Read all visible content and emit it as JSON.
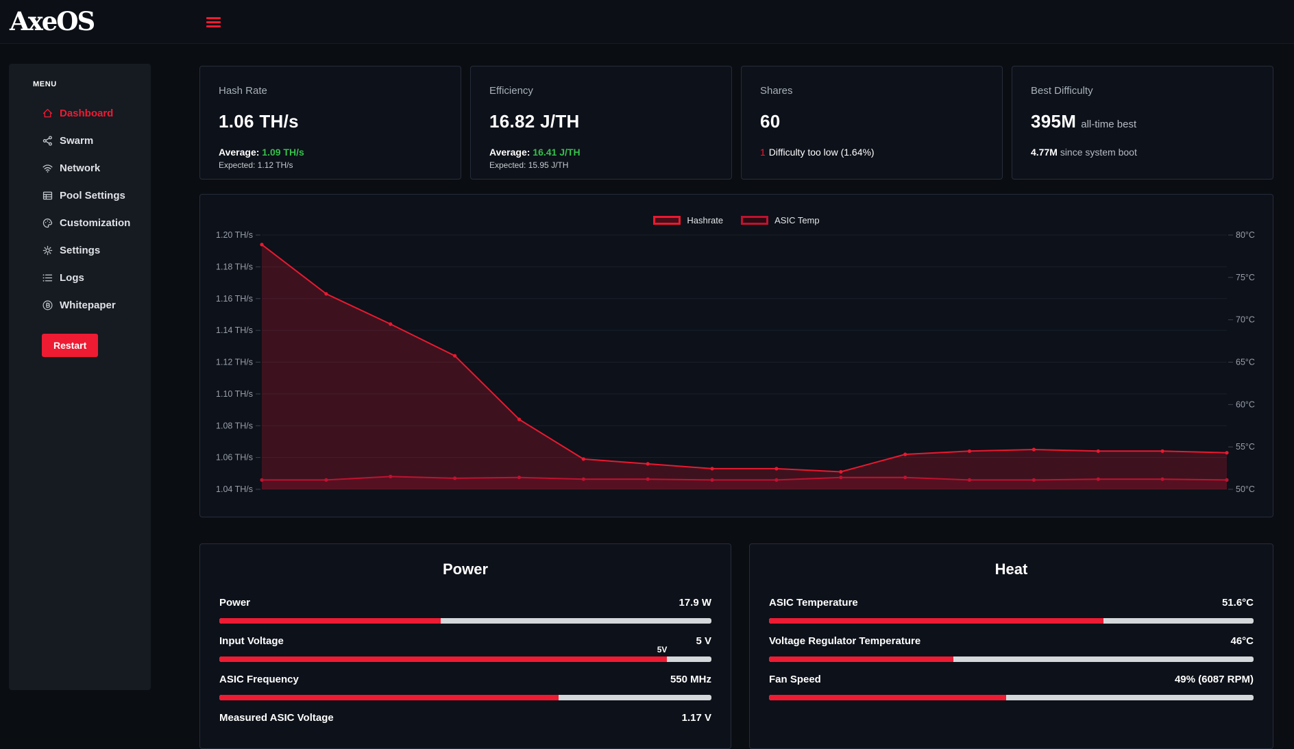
{
  "topbar": {
    "logo_text": "AxeOS"
  },
  "sidebar": {
    "menu_label": "MENU",
    "items": [
      {
        "label": "Dashboard",
        "icon": "home-icon",
        "active": true
      },
      {
        "label": "Swarm",
        "icon": "share-nodes-icon",
        "active": false
      },
      {
        "label": "Network",
        "icon": "wifi-icon",
        "active": false
      },
      {
        "label": "Pool Settings",
        "icon": "table-icon",
        "active": false
      },
      {
        "label": "Customization",
        "icon": "palette-icon",
        "active": false
      },
      {
        "label": "Settings",
        "icon": "gear-icon",
        "active": false
      },
      {
        "label": "Logs",
        "icon": "list-icon",
        "active": false
      },
      {
        "label": "Whitepaper",
        "icon": "bitcoin-icon",
        "active": false
      }
    ],
    "restart_label": "Restart"
  },
  "stats": [
    {
      "label": "Hash Rate",
      "value": "1.06 TH/s",
      "avg_label": "Average:",
      "avg_value": "1.09 TH/s",
      "expected": "Expected: 1.12 TH/s"
    },
    {
      "label": "Efficiency",
      "value": "16.82 J/TH",
      "avg_label": "Average:",
      "avg_value": "16.41 J/TH",
      "expected": "Expected: 15.95 J/TH"
    },
    {
      "label": "Shares",
      "value": "60",
      "rejected_count": "1",
      "rejected_text": "Difficulty too low (1.64%)"
    },
    {
      "label": "Best Difficulty",
      "value": "395M",
      "value_suffix": "all-time best",
      "sub_value": "4.77M",
      "sub_suffix": "since system boot"
    }
  ],
  "chart_data": {
    "type": "line",
    "legend_position": "top-center",
    "grid": true,
    "grid_color": "#1a202a",
    "axis_color": "#98a0aa",
    "tick_color": "#3c434e",
    "x_axis": {
      "labels_visible": false,
      "points": 16
    },
    "left_axis": {
      "min": 1.04,
      "max": 1.2,
      "ticks": [
        "1.20 TH/s",
        "1.18 TH/s",
        "1.16 TH/s",
        "1.14 TH/s",
        "1.12 TH/s",
        "1.10 TH/s",
        "1.08 TH/s",
        "1.06 TH/s",
        "1.04 TH/s"
      ]
    },
    "right_axis": {
      "min": 50,
      "max": 80,
      "ticks": [
        "80°C",
        "75°C",
        "70°C",
        "65°C",
        "60°C",
        "55°C",
        "50°C"
      ]
    },
    "series": [
      {
        "name": "Hashrate",
        "axis": "left",
        "color": "#ea1930",
        "fill": "rgba(234,25,48,0.22)",
        "swatch_fill": "#470d18",
        "values": [
          1.194,
          1.163,
          1.144,
          1.124,
          1.084,
          1.059,
          1.056,
          1.053,
          1.053,
          1.051,
          1.062,
          1.064,
          1.065,
          1.064,
          1.064,
          1.063
        ]
      },
      {
        "name": "ASIC Temp",
        "axis": "right",
        "color": "#c01230",
        "fill": "rgba(192,18,48,0.18)",
        "swatch_fill": "#2c0a12",
        "values": [
          51.1,
          51.1,
          51.5,
          51.3,
          51.4,
          51.2,
          51.2,
          51.1,
          51.1,
          51.4,
          51.4,
          51.1,
          51.1,
          51.2,
          51.2,
          51.1
        ]
      }
    ]
  },
  "power_card": {
    "title": "Power",
    "rows": [
      {
        "label": "Power",
        "value": "17.9 W",
        "percent": 45
      },
      {
        "label": "Input Voltage",
        "value": "5 V",
        "percent": 91,
        "marker": "5V"
      },
      {
        "label": "ASIC Frequency",
        "value": "550 MHz",
        "percent": 69
      },
      {
        "label": "Measured ASIC Voltage",
        "value": "1.17 V",
        "percent": null
      }
    ]
  },
  "heat_card": {
    "title": "Heat",
    "rows": [
      {
        "label": "ASIC Temperature",
        "value": "51.6°C",
        "percent": 69
      },
      {
        "label": "Voltage Regulator Temperature",
        "value": "46°C",
        "percent": 38
      },
      {
        "label": "Fan Speed",
        "value": "49% (6087 RPM)",
        "percent": 49
      }
    ]
  },
  "colors": {
    "accent_red": "#ee1b33",
    "green": "#35c04b",
    "page_bg": "#0a0d12",
    "card_bg": "#0d1119",
    "sidebar_bg": "#161a21",
    "bar_track": "#d5d8db"
  }
}
